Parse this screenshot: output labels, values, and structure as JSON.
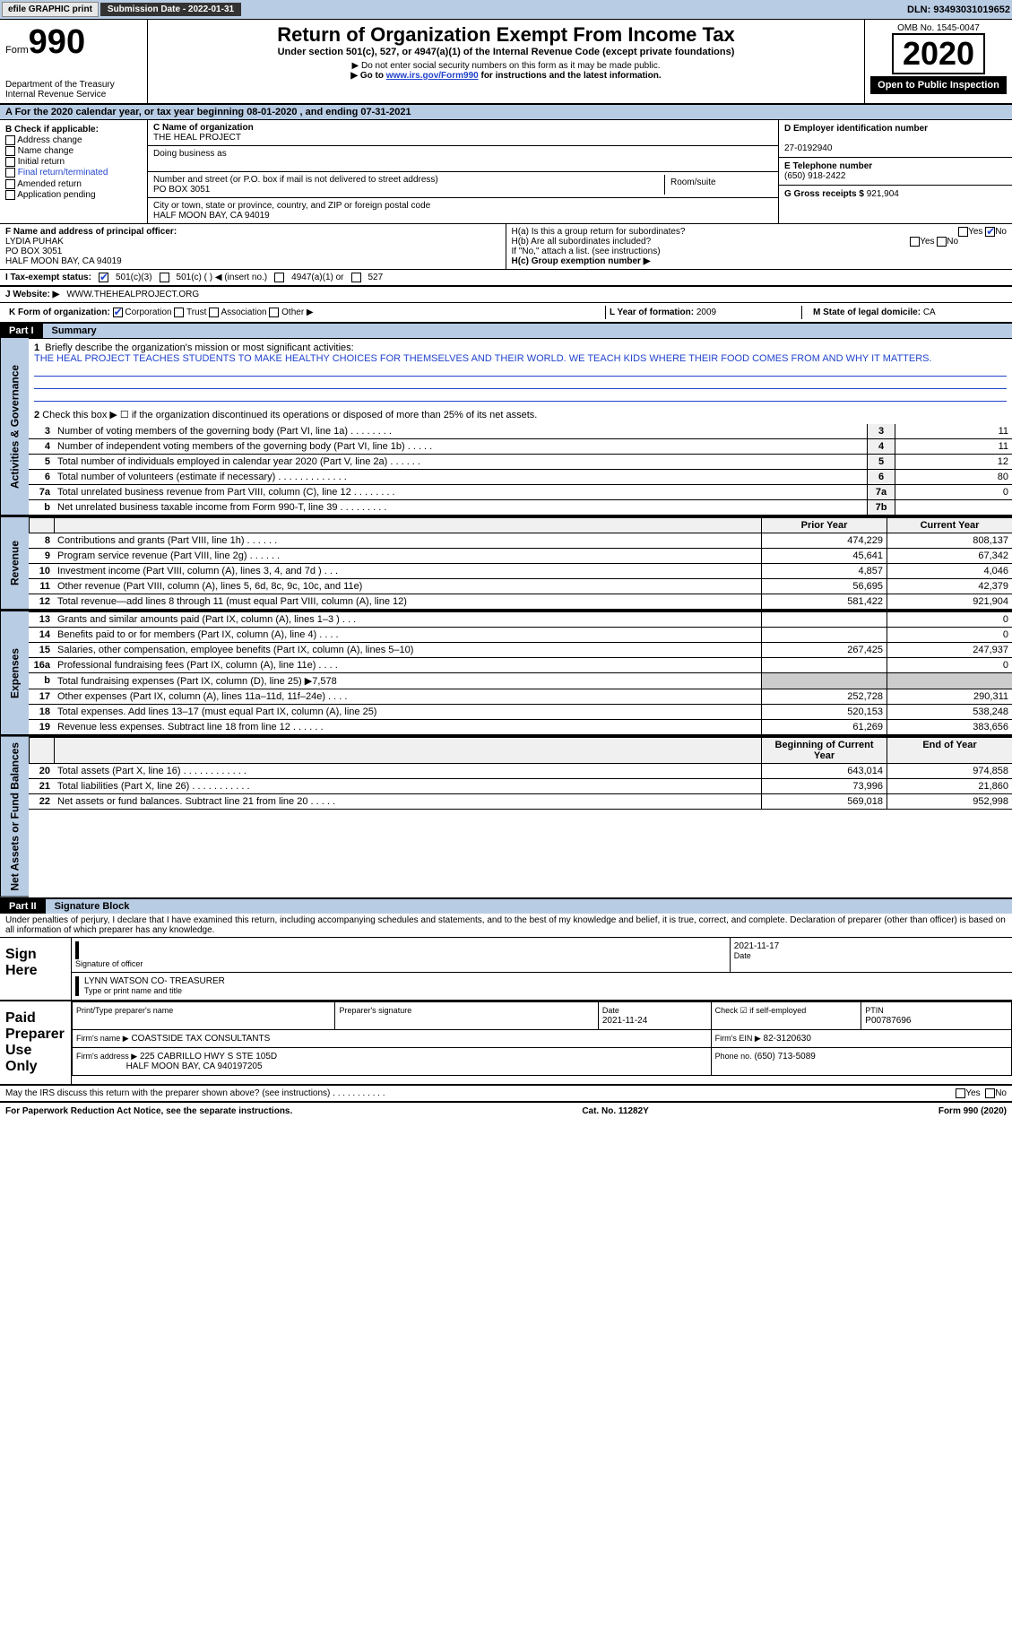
{
  "toolbar": {
    "efile": "efile GRAPHIC print",
    "submission_label": "Submission Date - 2022-01-31",
    "dln": "DLN: 93493031019652"
  },
  "header": {
    "form_word": "Form",
    "form_num": "990",
    "dept": "Department of the Treasury\nInternal Revenue Service",
    "title": "Return of Organization Exempt From Income Tax",
    "subtitle": "Under section 501(c), 527, or 4947(a)(1) of the Internal Revenue Code (except private foundations)",
    "note1": "▶ Do not enter social security numbers on this form as it may be made public.",
    "note2_pre": "▶ Go to ",
    "note2_link": "www.irs.gov/Form990",
    "note2_post": " for instructions and the latest information.",
    "omb": "OMB No. 1545-0047",
    "year": "2020",
    "open_public": "Open to Public Inspection"
  },
  "period": "A For the 2020 calendar year, or tax year beginning 08-01-2020   , and ending 07-31-2021",
  "box_b": {
    "label": "B Check if applicable:",
    "items": [
      "Address change",
      "Name change",
      "Initial return",
      "Final return/terminated",
      "Amended return",
      "Application pending"
    ],
    "checked": []
  },
  "identity": {
    "c_label": "C Name of organization",
    "c_name": "THE HEAL PROJECT",
    "dba_label": "Doing business as",
    "street_label": "Number and street (or P.O. box if mail is not delivered to street address)",
    "street": "PO BOX 3051",
    "room_label": "Room/suite",
    "city_label": "City or town, state or province, country, and ZIP or foreign postal code",
    "city": "HALF MOON BAY, CA  94019",
    "d_label": "D Employer identification number",
    "d_ein": "27-0192940",
    "e_label": "E Telephone number",
    "e_phone": "(650) 918-2422",
    "g_label": "G Gross receipts $",
    "g_amount": "921,904"
  },
  "f": {
    "label": "F Name and address of principal officer:",
    "name": "LYDIA PUHAK",
    "addr1": "PO BOX 3051",
    "addr2": "HALF MOON BAY, CA  94019"
  },
  "h": {
    "a": "H(a)  Is this a group return for subordinates?",
    "a_yes": "Yes",
    "a_no": "No",
    "b": "H(b)  Are all subordinates included?",
    "b_yes": "Yes",
    "b_no": "No",
    "b_note": "If \"No,\" attach a list. (see instructions)",
    "c": "H(c)  Group exemption number ▶"
  },
  "i": {
    "label": "I   Tax-exempt status:",
    "o1": "501(c)(3)",
    "o2": "501(c) (    ) ◀ (insert no.)",
    "o3": "4947(a)(1) or",
    "o4": "527"
  },
  "j": {
    "label": "J   Website: ▶",
    "value": "WWW.THEHEALPROJECT.ORG"
  },
  "k": {
    "label": "K Form of organization:",
    "o1": "Corporation",
    "o2": "Trust",
    "o3": "Association",
    "o4": "Other ▶"
  },
  "l": {
    "label": "L Year of formation:",
    "value": "2009"
  },
  "m": {
    "label": "M State of legal domicile:",
    "value": "CA"
  },
  "part1": {
    "tag": "Part I",
    "label": "Summary"
  },
  "mission": {
    "q1_num": "1",
    "q1": "Briefly describe the organization's mission or most significant activities:",
    "q1_text": "THE HEAL PROJECT TEACHES STUDENTS TO MAKE HEALTHY CHOICES FOR THEMSELVES AND THEIR WORLD. WE TEACH KIDS WHERE THEIR FOOD COMES FROM AND WHY IT MATTERS.",
    "q2_num": "2",
    "q2": "Check this box ▶ ☐  if the organization discontinued its operations or disposed of more than 25% of its net assets."
  },
  "gov_lines": [
    {
      "n": "3",
      "t": "Number of voting members of the governing body (Part VI, line 1a)   .    .    .    .    .    .    .    .",
      "b": "3",
      "v": "11"
    },
    {
      "n": "4",
      "t": "Number of independent voting members of the governing body (Part VI, line 1b)   .    .    .    .    .",
      "b": "4",
      "v": "11"
    },
    {
      "n": "5",
      "t": "Total number of individuals employed in calendar year 2020 (Part V, line 2a)   .    .    .    .    .    .",
      "b": "5",
      "v": "12"
    },
    {
      "n": "6",
      "t": "Total number of volunteers (estimate if necessary)   .    .    .    .    .    .    .    .    .    .    .    .    .",
      "b": "6",
      "v": "80"
    },
    {
      "n": "7a",
      "t": "Total unrelated business revenue from Part VIII, column (C), line 12   .    .    .    .    .    .    .    .",
      "b": "7a",
      "v": "0"
    },
    {
      "n": "b",
      "t": "Net unrelated business taxable income from Form 990-T, line 39   .    .    .    .    .    .    .    .    .",
      "b": "7b",
      "v": ""
    }
  ],
  "col_headers": {
    "py": "Prior Year",
    "cy": "Current Year",
    "bcy": "Beginning of Current Year",
    "eoy": "End of Year"
  },
  "rev_lines": [
    {
      "n": "8",
      "t": "Contributions and grants (Part VIII, line 1h)   .    .    .    .    .    .",
      "py": "474,229",
      "cy": "808,137"
    },
    {
      "n": "9",
      "t": "Program service revenue (Part VIII, line 2g)   .    .    .    .    .    .",
      "py": "45,641",
      "cy": "67,342"
    },
    {
      "n": "10",
      "t": "Investment income (Part VIII, column (A), lines 3, 4, and 7d )   .    .    .",
      "py": "4,857",
      "cy": "4,046"
    },
    {
      "n": "11",
      "t": "Other revenue (Part VIII, column (A), lines 5, 6d, 8c, 9c, 10c, and 11e)",
      "py": "56,695",
      "cy": "42,379"
    },
    {
      "n": "12",
      "t": "Total revenue—add lines 8 through 11 (must equal Part VIII, column (A), line 12)",
      "py": "581,422",
      "cy": "921,904"
    }
  ],
  "exp_lines": [
    {
      "n": "13",
      "t": "Grants and similar amounts paid (Part IX, column (A), lines 1–3 )  .    .    .",
      "py": "",
      "cy": "0"
    },
    {
      "n": "14",
      "t": "Benefits paid to or for members (Part IX, column (A), line 4)   .    .    .    .",
      "py": "",
      "cy": "0"
    },
    {
      "n": "15",
      "t": "Salaries, other compensation, employee benefits (Part IX, column (A), lines 5–10)",
      "py": "267,425",
      "cy": "247,937"
    },
    {
      "n": "16a",
      "t": "Professional fundraising fees (Part IX, column (A), line 11e)   .    .    .    .",
      "py": "",
      "cy": "0"
    },
    {
      "n": "b",
      "t": "Total fundraising expenses (Part IX, column (D), line 25) ▶7,578",
      "py": "",
      "cy": "",
      "shade": true
    },
    {
      "n": "17",
      "t": "Other expenses (Part IX, column (A), lines 11a–11d, 11f–24e)   .    .    .    .",
      "py": "252,728",
      "cy": "290,311"
    },
    {
      "n": "18",
      "t": "Total expenses. Add lines 13–17 (must equal Part IX, column (A), line 25)",
      "py": "520,153",
      "cy": "538,248"
    },
    {
      "n": "19",
      "t": "Revenue less expenses. Subtract line 18 from line 12   .    .    .    .    .    .",
      "py": "61,269",
      "cy": "383,656"
    }
  ],
  "na_lines": [
    {
      "n": "20",
      "t": "Total assets (Part X, line 16)   .    .    .    .    .    .    .    .    .    .    .    .",
      "py": "643,014",
      "cy": "974,858"
    },
    {
      "n": "21",
      "t": "Total liabilities (Part X, line 26)   .    .    .    .    .    .    .    .    .    .    .",
      "py": "73,996",
      "cy": "21,860"
    },
    {
      "n": "22",
      "t": "Net assets or fund balances. Subtract line 21 from line 20   .    .    .    .    .",
      "py": "569,018",
      "cy": "952,998"
    }
  ],
  "vlabels": {
    "gov": "Activities & Governance",
    "rev": "Revenue",
    "exp": "Expenses",
    "na": "Net Assets or Fund Balances"
  },
  "part2": {
    "tag": "Part II",
    "label": "Signature Block"
  },
  "sig_disclaimer": "Under penalties of perjury, I declare that I have examined this return, including accompanying schedules and statements, and to the best of my knowledge and belief, it is true, correct, and complete. Declaration of preparer (other than officer) is based on all information of which preparer has any knowledge.",
  "sign_here": "Sign Here",
  "sig": {
    "sig_label": "Signature of officer",
    "date": "2021-11-17",
    "date_label": "Date",
    "name": "LYNN WATSON  CO- TREASURER",
    "name_label": "Type or print name and title"
  },
  "paid_label": "Paid Preparer Use Only",
  "prep": {
    "h1": "Print/Type preparer's name",
    "h2": "Preparer's signature",
    "h3": "Date",
    "h3v": "2021-11-24",
    "h4": "Check ☑ if self-employed",
    "h5": "PTIN",
    "h5v": "P00787696",
    "firm_label": "Firm's name    ▶",
    "firm": "COASTSIDE TAX CONSULTANTS",
    "ein_label": "Firm's EIN ▶",
    "ein": "82-3120630",
    "addr_label": "Firm's address ▶",
    "addr": "225 CABRILLO HWY S STE 105D",
    "addr2": "HALF MOON BAY, CA  940197205",
    "phone_label": "Phone no.",
    "phone": "(650) 713-5089"
  },
  "may_irs": "May the IRS discuss this return with the preparer shown above? (see instructions)   .    .    .    .    .    .    .    .    .    .    .",
  "may_yes": "Yes",
  "may_no": "No",
  "footer": {
    "left": "For Paperwork Reduction Act Notice, see the separate instructions.",
    "mid": "Cat. No. 11282Y",
    "right": "Form 990 (2020)"
  }
}
